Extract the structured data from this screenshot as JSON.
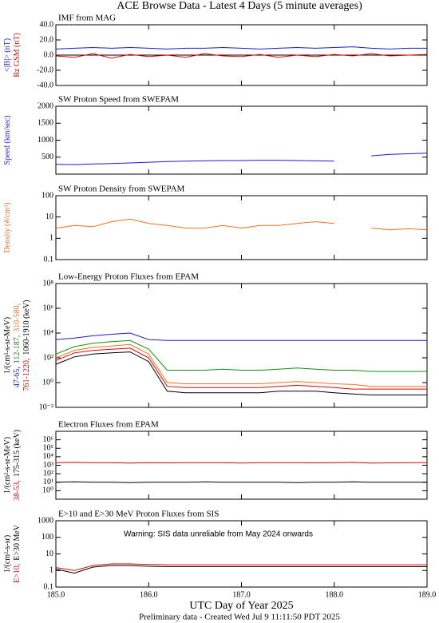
{
  "title": "ACE Browse Data - Latest 4 Days (5 minute averages)",
  "footer": "Preliminary data - Created Wed Jul  9 11:11:50 PDT 2025",
  "chart_data": [
    {
      "type": "line",
      "title": "IMF from MAG",
      "log": false,
      "x": [
        185.0,
        185.2,
        185.4,
        185.6,
        185.8,
        186.0,
        186.2,
        186.4,
        186.6,
        186.8,
        187.0,
        187.2,
        187.4,
        187.6,
        187.8,
        188.0,
        188.2,
        188.4,
        188.6,
        188.8,
        189.0
      ],
      "ylim": [
        -40,
        40
      ],
      "yticks": [
        {
          "value": -40,
          "label": "-40.0"
        },
        {
          "value": -20,
          "label": "-20.0"
        },
        {
          "value": 0,
          "label": "0.0"
        },
        {
          "value": 20,
          "label": "20.0"
        },
        {
          "value": 40,
          "label": "40.0"
        }
      ],
      "series": [
        {
          "name": "<|B|> (nT)",
          "color": "#1a1ad8",
          "values": [
            8,
            9,
            10,
            9,
            10,
            9,
            8,
            9,
            9,
            10,
            9,
            8,
            9,
            10,
            9,
            10,
            11,
            9,
            8,
            9,
            9
          ]
        },
        {
          "name": "Bz GSM (nT)",
          "color": "#e00000",
          "values": [
            -1,
            -3,
            2,
            -4,
            1,
            -2,
            0,
            -3,
            2,
            -1,
            -2,
            1,
            -3,
            0,
            -2,
            1,
            -1,
            2,
            -1,
            0,
            1
          ]
        }
      ]
    },
    {
      "type": "line",
      "title": "SW Proton Speed from SWEPAM",
      "log": false,
      "ylabel": "Speed (km/sec)",
      "x": [
        185.0,
        185.2,
        185.4,
        185.6,
        185.8,
        186.0,
        186.2,
        186.4,
        186.6,
        186.8,
        187.0,
        187.2,
        187.4,
        187.6,
        187.8,
        188.0,
        188.2,
        188.4,
        188.6,
        188.8,
        189.0
      ],
      "ylim": [
        0,
        2000
      ],
      "yticks": [
        500,
        1000,
        1500,
        2000
      ],
      "series": [
        {
          "name": "Speed",
          "color": "#1a1ad8",
          "values": [
            290,
            280,
            300,
            310,
            330,
            350,
            370,
            380,
            390,
            400,
            400,
            410,
            410,
            400,
            390,
            380,
            null,
            540,
            580,
            600,
            620
          ]
        }
      ]
    },
    {
      "type": "line",
      "title": "SW Proton Density from SWEPAM",
      "log": true,
      "ylabel": "Density (#/cm³)",
      "x": [
        185.0,
        185.2,
        185.4,
        185.6,
        185.8,
        186.0,
        186.2,
        186.4,
        186.6,
        186.8,
        187.0,
        187.2,
        187.4,
        187.6,
        187.8,
        188.0,
        188.2,
        188.4,
        188.6,
        188.8,
        189.0
      ],
      "ylim": [
        0.1,
        100
      ],
      "yticks": [
        0.1,
        1,
        10,
        100
      ],
      "series": [
        {
          "name": "Density",
          "color": "#f07020",
          "values": [
            3,
            4,
            3.5,
            6,
            8,
            5,
            4,
            3,
            3,
            4,
            3,
            4,
            4,
            5,
            6,
            5,
            null,
            3,
            2.5,
            2.8,
            2.5
          ]
        }
      ]
    },
    {
      "type": "line",
      "title": "Low-Energy Proton Fluxes from EPAM",
      "log": true,
      "ylabel": "1/(cm²-s-sr-MeV)",
      "x": [
        185.0,
        185.2,
        185.4,
        185.6,
        185.8,
        186.0,
        186.2,
        186.4,
        186.6,
        186.8,
        187.0,
        187.2,
        187.4,
        187.6,
        187.8,
        188.0,
        188.2,
        188.4,
        188.6,
        188.8,
        189.0
      ],
      "ylim": [
        0.01,
        100000000
      ],
      "yticks": [
        {
          "value": 0.01,
          "label": "10⁻²"
        },
        {
          "value": 1,
          "label": "10⁰"
        },
        {
          "value": 100,
          "label": "10²"
        },
        {
          "value": 10000,
          "label": "10⁴"
        },
        {
          "value": 1000000,
          "label": "10⁶"
        },
        {
          "value": 100000000,
          "label": "10⁸"
        }
      ],
      "series": [
        {
          "name": "47-65,",
          "color": "#1a1ad8",
          "values": [
            3000,
            4000,
            6000,
            8000,
            10000,
            3000,
            2500,
            2500,
            2500,
            2500,
            2500,
            2500,
            2500,
            2500,
            2500,
            2500,
            2500,
            2500,
            2500,
            2500,
            2500
          ]
        },
        {
          "name": "112-187,",
          "color": "#109010",
          "values": [
            200,
            800,
            1500,
            2000,
            2500,
            500,
            10,
            10,
            10,
            12,
            10,
            10,
            12,
            15,
            12,
            10,
            10,
            8,
            8,
            8,
            8
          ]
        },
        {
          "name": "310-580,",
          "color": "#f07020",
          "values": [
            100,
            400,
            700,
            900,
            1200,
            200,
            1,
            0.8,
            0.8,
            0.8,
            0.8,
            0.8,
            1,
            1.2,
            1,
            0.8,
            0.7,
            0.5,
            0.5,
            0.5,
            0.5
          ]
        },
        {
          "name": "761-1220,",
          "color": "#e00000",
          "values": [
            60,
            250,
            400,
            500,
            600,
            100,
            0.5,
            0.4,
            0.4,
            0.4,
            0.4,
            0.4,
            0.5,
            0.6,
            0.5,
            0.4,
            0.3,
            0.3,
            0.3,
            0.3,
            0.3
          ]
        },
        {
          "name": "1060-1910 (keV)",
          "color": "#000000",
          "values": [
            30,
            120,
            200,
            250,
            300,
            50,
            0.2,
            0.15,
            0.15,
            0.15,
            0.15,
            0.15,
            0.2,
            0.2,
            0.2,
            0.15,
            0.12,
            0.1,
            0.1,
            0.1,
            0.1
          ]
        }
      ]
    },
    {
      "type": "line",
      "title": "Electron Fluxes from EPAM",
      "log": true,
      "ylabel": "1/(cm²-s-sr-MeV)",
      "x": [
        185.0,
        185.2,
        185.4,
        185.6,
        185.8,
        186.0,
        186.2,
        186.4,
        186.6,
        186.8,
        187.0,
        187.2,
        187.4,
        187.6,
        187.8,
        188.0,
        188.2,
        188.4,
        188.6,
        188.8,
        189.0
      ],
      "ylim": [
        0.1,
        10000000
      ],
      "yticks": [
        {
          "value": 1,
          "label": "10⁰"
        },
        {
          "value": 10,
          "label": "10¹"
        },
        {
          "value": 100,
          "label": "10²"
        },
        {
          "value": 1000,
          "label": "10³"
        },
        {
          "value": 10000,
          "label": "10⁴"
        },
        {
          "value": 100000,
          "label": "10⁵"
        },
        {
          "value": 1000000,
          "label": "10⁶"
        }
      ],
      "series": [
        {
          "name": "38-53,",
          "color": "#e00000",
          "values": [
            2000,
            2200,
            2000,
            2000,
            1800,
            2000,
            1900,
            2000,
            2000,
            2000,
            1800,
            2000,
            2000,
            2000,
            1900,
            2000,
            2200,
            1800,
            1900,
            2000,
            2000
          ]
        },
        {
          "name": "175-315 (keV)",
          "color": "#000000",
          "values": [
            10,
            11,
            10,
            10,
            9,
            10,
            10,
            10,
            11,
            10,
            10,
            10,
            10,
            9,
            10,
            10,
            11,
            10,
            10,
            10,
            10
          ]
        }
      ]
    },
    {
      "type": "line",
      "title": "E>10 and E>30 MeV Proton Fluxes from SIS",
      "log": true,
      "ylabel": "1/(cm²-s-sr)",
      "annotation": "Warning: SIS data unreliable from May 2024 onwards",
      "x": [
        185.0,
        185.2,
        185.4,
        185.6,
        185.8,
        186.0,
        186.2,
        186.4,
        186.6,
        186.8,
        187.0,
        187.2,
        187.4,
        187.6,
        187.8,
        188.0,
        188.2,
        188.4,
        188.6,
        188.8,
        189.0
      ],
      "ylim": [
        0.1,
        1000
      ],
      "yticks": [
        0.1,
        1,
        10,
        100,
        1000
      ],
      "xlim": [
        185,
        189
      ],
      "xticks": [
        {
          "value": 185,
          "label": "185.0"
        },
        {
          "value": 186,
          "label": "186.0"
        },
        {
          "value": 187,
          "label": "187.0"
        },
        {
          "value": 188,
          "label": "188.0"
        },
        {
          "value": 189,
          "label": "189.0"
        }
      ],
      "xlabel": "UTC Day of Year 2025",
      "series": [
        {
          "name": "E>10,",
          "color": "#e00000",
          "values": [
            1.5,
            1,
            2,
            2.5,
            2.5,
            2.3,
            2.2,
            2.2,
            2.2,
            2.2,
            2.2,
            2.2,
            2.2,
            2.2,
            2.2,
            2.2,
            2.2,
            2.2,
            2.2,
            2.2,
            2.2
          ]
        },
        {
          "name": "E>30 MeV",
          "color": "#000000",
          "values": [
            1.2,
            0.7,
            1.6,
            2,
            2,
            1.8,
            1.7,
            1.7,
            1.7,
            1.7,
            1.7,
            1.7,
            1.7,
            1.7,
            1.7,
            1.7,
            1.7,
            1.7,
            1.7,
            1.7,
            1.7
          ]
        }
      ]
    }
  ]
}
